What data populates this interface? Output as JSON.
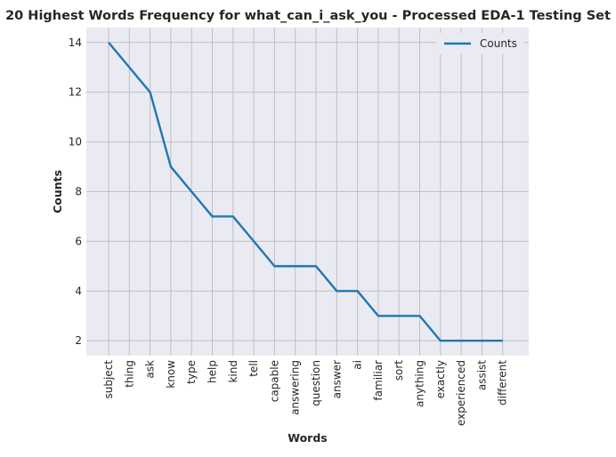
{
  "chart_data": {
    "type": "line",
    "title": "20 Highest Words Frequency for what_can_i_ask_you - Processed EDA-1 Testing Set",
    "xlabel": "Words",
    "ylabel": "Counts",
    "categories": [
      "subject",
      "thing",
      "ask",
      "know",
      "type",
      "help",
      "kind",
      "tell",
      "capable",
      "answering",
      "question",
      "answer",
      "ai",
      "familiar",
      "sort",
      "anything",
      "exactly",
      "experienced",
      "assist",
      "different"
    ],
    "series": [
      {
        "name": "Counts",
        "values": [
          14,
          13,
          12,
          9,
          8,
          7,
          7,
          6,
          5,
          5,
          5,
          4,
          4,
          3,
          3,
          3,
          2,
          2,
          2,
          2
        ]
      }
    ],
    "ylim": [
      1.4,
      14.6
    ],
    "yticks": [
      2,
      4,
      6,
      8,
      10,
      12,
      14
    ],
    "grid": true,
    "legend": "top-right",
    "colors": {
      "line": "#1f77b4",
      "plot_bg": "#eaeaf2",
      "grid": "#c0c0c0"
    }
  }
}
